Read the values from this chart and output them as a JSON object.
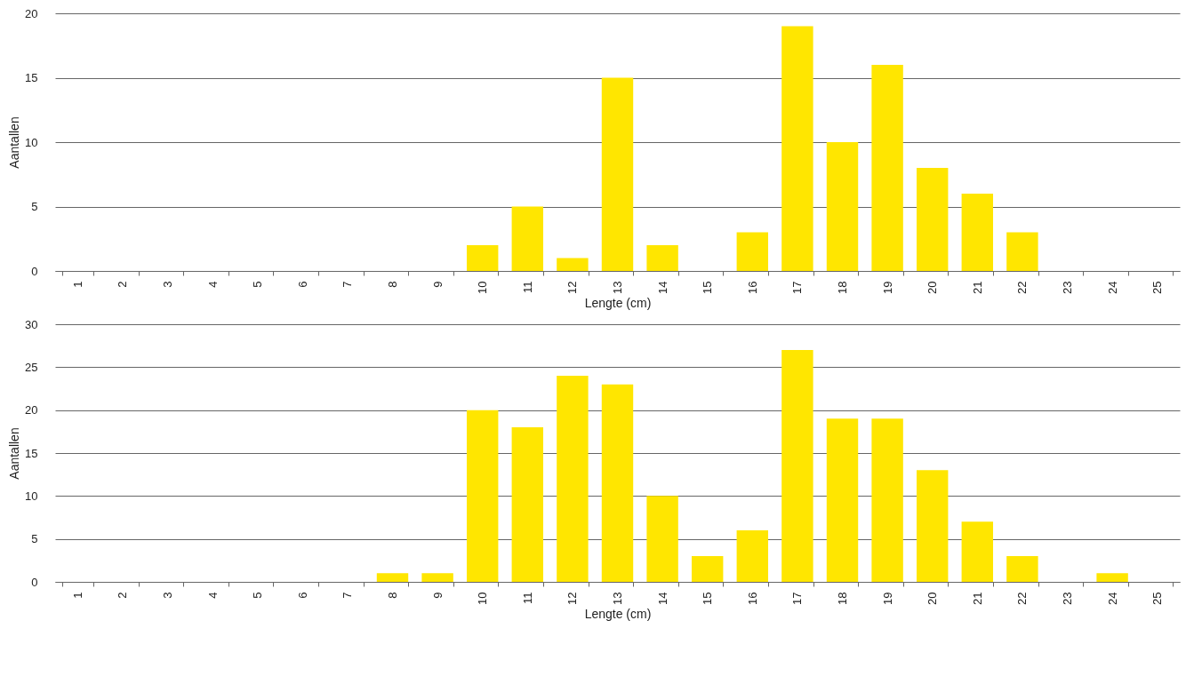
{
  "chart_data": [
    {
      "type": "bar",
      "xlabel": "Lengte (cm)",
      "ylabel": "Aantallen",
      "categories": [
        "1",
        "2",
        "3",
        "4",
        "5",
        "6",
        "7",
        "8",
        "9",
        "10",
        "11",
        "12",
        "13",
        "14",
        "15",
        "16",
        "17",
        "18",
        "19",
        "20",
        "21",
        "22",
        "23",
        "24",
        "25"
      ],
      "values": [
        0,
        0,
        0,
        0,
        0,
        0,
        0,
        0,
        0,
        2,
        5,
        1,
        15,
        2,
        0,
        3,
        19,
        10,
        16,
        8,
        6,
        3,
        0,
        0,
        0
      ],
      "color": "#ffe600",
      "ylim": [
        0,
        20
      ],
      "yticks": [
        0,
        5,
        10,
        15,
        20
      ],
      "grid": "y"
    },
    {
      "type": "bar",
      "xlabel": "Lengte (cm)",
      "ylabel": "Aantallen",
      "categories": [
        "1",
        "2",
        "3",
        "4",
        "5",
        "6",
        "7",
        "8",
        "9",
        "10",
        "11",
        "12",
        "13",
        "14",
        "15",
        "16",
        "17",
        "18",
        "19",
        "20",
        "21",
        "22",
        "23",
        "24",
        "25"
      ],
      "values": [
        0,
        0,
        0,
        0,
        0,
        0,
        0,
        1,
        1,
        20,
        18,
        24,
        23,
        10,
        3,
        6,
        27,
        19,
        19,
        13,
        7,
        3,
        0,
        1,
        0
      ],
      "color": "#ffe600",
      "ylim": [
        0,
        30
      ],
      "yticks": [
        0,
        5,
        10,
        15,
        20,
        25,
        30
      ],
      "grid": "y"
    }
  ]
}
